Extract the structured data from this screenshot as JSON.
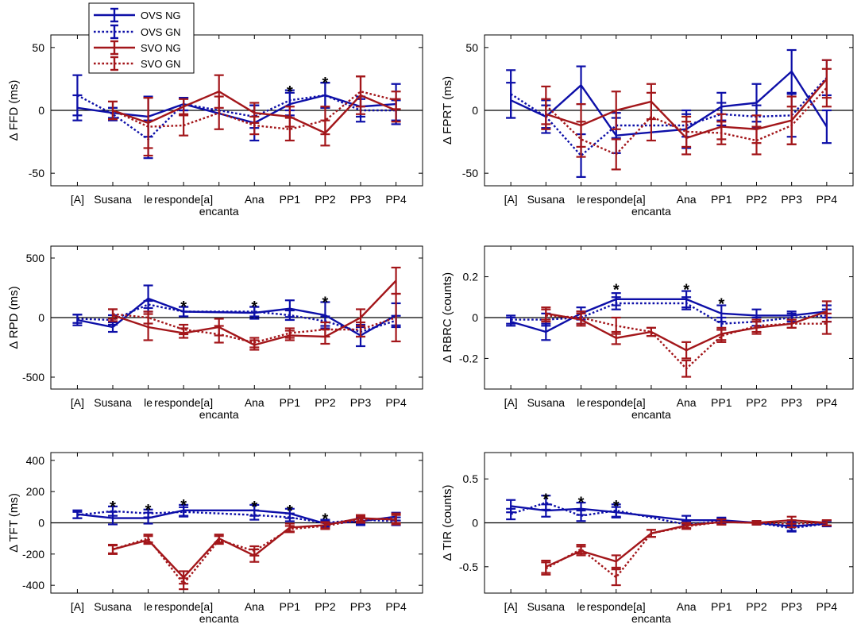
{
  "colors": {
    "ovs": "#0d0fa8",
    "svo": "#a3161a"
  },
  "legend": {
    "entries": [
      {
        "label": "OVS NG",
        "series": "OVS NG"
      },
      {
        "label": "OVS GN",
        "series": "OVS GN"
      },
      {
        "label": "SVO NG",
        "series": "SVO NG"
      },
      {
        "label": "SVO GN",
        "series": "SVO GN"
      }
    ]
  },
  "chart_data": [
    {
      "type": "line",
      "id": "ffd",
      "ylabel": "Δ FFD (ms)",
      "ylim": [
        -60,
        60
      ],
      "yticks": [
        -50,
        0,
        50
      ],
      "yticklabels": [
        "-50",
        "0",
        "50"
      ],
      "categories": [
        "[A]",
        "Susana",
        "le",
        "responde[a]",
        "encanta",
        "Ana",
        "PP1",
        "PP2",
        "PP3",
        "PP4"
      ],
      "category_labels": [
        "[A]",
        "Susana",
        "le",
        "responde[a]",
        "encanta",
        "Ana",
        "PP1",
        "PP2",
        "PP3",
        "PP4"
      ],
      "series": [
        {
          "name": "OVS NG",
          "values": [
            2,
            -2,
            -5,
            5,
            null,
            -10,
            5,
            12,
            3,
            5
          ],
          "errors": [
            10,
            4,
            16,
            5,
            null,
            14,
            9,
            10,
            8,
            16
          ]
        },
        {
          "name": "OVS GN",
          "values": [
            12,
            -3,
            -23,
            5,
            null,
            -5,
            8,
            12,
            0,
            0
          ],
          "errors": [
            16,
            5,
            15,
            5,
            null,
            9,
            8,
            10,
            9,
            8
          ]
        },
        {
          "name": "SVO NG",
          "values": [
            null,
            0,
            -10,
            3,
            15,
            -2,
            -5,
            -18,
            12,
            0
          ],
          "errors": [
            null,
            7,
            20,
            6,
            13,
            8,
            8,
            10,
            15,
            9
          ]
        },
        {
          "name": "SVO GN",
          "values": [
            null,
            0,
            -13,
            -12,
            -2,
            -12,
            -15,
            -8,
            15,
            8
          ],
          "errors": [
            null,
            7,
            23,
            8,
            13,
            7,
            9,
            11,
            12,
            7
          ]
        }
      ],
      "significance": [
        {
          "category": "PP1",
          "value": 17,
          "text": "*"
        },
        {
          "category": "PP2",
          "value": 24,
          "text": "*"
        }
      ]
    },
    {
      "type": "line",
      "id": "fprt",
      "ylabel": "Δ FPRT (ms)",
      "ylim": [
        -60,
        60
      ],
      "yticks": [
        -50,
        0,
        50
      ],
      "yticklabels": [
        "-50",
        "0",
        "50"
      ],
      "categories": [
        "[A]",
        "Susana",
        "le",
        "responde[a]",
        "encanta",
        "Ana",
        "PP1",
        "PP2",
        "PP3",
        "PP4"
      ],
      "category_labels": [
        "[A]",
        "Susana",
        "le",
        "responde[a]",
        "encanta",
        "Ana",
        "PP1",
        "PP2",
        "PP3",
        "PP4"
      ],
      "series": [
        {
          "name": "OVS NG",
          "values": [
            8,
            -5,
            20,
            -20,
            null,
            -15,
            3,
            6,
            31,
            -13
          ],
          "errors": [
            14,
            13,
            15,
            14,
            null,
            15,
            11,
            15,
            17,
            13
          ]
        },
        {
          "name": "OVS GN",
          "values": [
            13,
            -5,
            -36,
            -12,
            null,
            -12,
            -3,
            -5,
            -4,
            26
          ],
          "errors": [
            19,
            9,
            17,
            10,
            null,
            9,
            9,
            9,
            17,
            14
          ]
        },
        {
          "name": "SVO NG",
          "values": [
            null,
            -3,
            -12,
            0,
            7,
            -22,
            -13,
            -15,
            -8,
            25
          ],
          "errors": [
            null,
            12,
            17,
            15,
            14,
            13,
            10,
            11,
            19,
            15
          ]
        },
        {
          "name": "SVO GN",
          "values": [
            null,
            4,
            -23,
            -35,
            -5,
            -17,
            -18,
            -24,
            -12,
            18
          ],
          "errors": [
            null,
            15,
            14,
            12,
            19,
            12,
            9,
            11,
            15,
            15
          ]
        }
      ],
      "significance": []
    },
    {
      "type": "line",
      "id": "rpd",
      "ylabel": "Δ RPD (ms)",
      "ylim": [
        -600,
        600
      ],
      "yticks": [
        -500,
        0,
        500
      ],
      "yticklabels": [
        "-500",
        "0",
        "500"
      ],
      "categories": [
        "[A]",
        "Susana",
        "le",
        "responde[a]",
        "encanta",
        "Ana",
        "PP1",
        "PP2",
        "PP3",
        "PP4"
      ],
      "category_labels": [
        "[A]",
        "Susana",
        "le",
        "responde[a]",
        "encanta",
        "Ana",
        "PP1",
        "PP2",
        "PP3",
        "PP4"
      ],
      "series": [
        {
          "name": "OVS NG",
          "values": [
            -20,
            -80,
            160,
            50,
            null,
            40,
            75,
            20,
            -150,
            20
          ],
          "errors": [
            45,
            40,
            110,
            40,
            null,
            50,
            70,
            110,
            90,
            100
          ]
        },
        {
          "name": "OVS GN",
          "values": [
            -10,
            -20,
            110,
            50,
            null,
            50,
            20,
            -30,
            -120,
            -25
          ],
          "errors": [
            35,
            40,
            30,
            40,
            null,
            40,
            40,
            40,
            40,
            40
          ]
        },
        {
          "name": "SVO NG",
          "values": [
            null,
            20,
            -80,
            -130,
            -80,
            -230,
            -150,
            -160,
            0,
            310
          ],
          "errors": [
            null,
            50,
            110,
            40,
            70,
            40,
            40,
            60,
            70,
            110
          ]
        },
        {
          "name": "SVO GN",
          "values": [
            null,
            30,
            0,
            -100,
            -140,
            -210,
            -130,
            -100,
            -100,
            0
          ],
          "errors": [
            null,
            40,
            50,
            40,
            70,
            40,
            40,
            60,
            60,
            200
          ]
        }
      ],
      "significance": [
        {
          "category": "responde[a]",
          "value": 115,
          "text": "*"
        },
        {
          "category": "Ana",
          "value": 115,
          "text": "*"
        },
        {
          "category": "PP2",
          "value": 150,
          "text": "*"
        }
      ]
    },
    {
      "type": "line",
      "id": "rbrc",
      "ylabel": "Δ RBRC (counts)",
      "ylim": [
        -0.35,
        0.35
      ],
      "yticks": [
        -0.2,
        0,
        0.2
      ],
      "yticklabels": [
        "-0.2",
        "0",
        "0.2"
      ],
      "categories": [
        "[A]",
        "Susana",
        "le",
        "responde[a]",
        "encanta",
        "Ana",
        "PP1",
        "PP2",
        "PP3",
        "PP4"
      ],
      "category_labels": [
        "[A]",
        "Susana",
        "le",
        "responde[a]",
        "encanta",
        "Ana",
        "PP1",
        "PP2",
        "PP3",
        "PP4"
      ],
      "series": [
        {
          "name": "OVS NG",
          "values": [
            -0.02,
            -0.07,
            0.02,
            0.09,
            null,
            0.09,
            0.02,
            0.01,
            0.01,
            0.03
          ],
          "errors": [
            0.02,
            0.04,
            0.03,
            0.03,
            null,
            0.04,
            0.04,
            0.03,
            0.02,
            0.03
          ]
        },
        {
          "name": "OVS GN",
          "values": [
            -0.01,
            -0.01,
            0.0,
            0.07,
            null,
            0.07,
            -0.03,
            -0.02,
            0.0,
            0.01
          ],
          "errors": [
            0.02,
            0.03,
            0.03,
            0.03,
            null,
            0.03,
            0.03,
            0.02,
            0.02,
            0.03
          ]
        },
        {
          "name": "SVO NG",
          "values": [
            null,
            0.02,
            -0.01,
            -0.1,
            -0.07,
            -0.16,
            -0.08,
            -0.05,
            -0.03,
            0.03
          ],
          "errors": [
            null,
            0.03,
            0.03,
            0.03,
            0.02,
            0.04,
            0.03,
            0.03,
            0.02,
            0.05
          ]
        },
        {
          "name": "SVO GN",
          "values": [
            null,
            0.01,
            0.0,
            -0.04,
            -0.07,
            -0.25,
            -0.09,
            -0.04,
            -0.03,
            -0.03
          ],
          "errors": [
            null,
            0.03,
            0.03,
            0.04,
            0.02,
            0.04,
            0.03,
            0.03,
            0.02,
            0.05
          ]
        }
      ],
      "significance": [
        {
          "category": "responde[a]",
          "value": 0.15,
          "text": "*"
        },
        {
          "category": "Ana",
          "value": 0.15,
          "text": "*"
        },
        {
          "category": "PP1",
          "value": 0.08,
          "text": "*"
        }
      ]
    },
    {
      "type": "line",
      "id": "tft",
      "ylabel": "Δ TFT (ms)",
      "ylim": [
        -450,
        450
      ],
      "yticks": [
        -400,
        -200,
        0,
        200,
        400
      ],
      "yticklabels": [
        "-400",
        "-200",
        "0",
        "200",
        "400"
      ],
      "categories": [
        "[A]",
        "Susana",
        "le",
        "responde[a]",
        "encanta",
        "Ana",
        "PP1",
        "PP2",
        "PP3",
        "PP4"
      ],
      "category_labels": [
        "[A]",
        "Susana",
        "le",
        "responde[a]",
        "encanta",
        "Ana",
        "PP1",
        "PP2",
        "PP3",
        "PP4"
      ],
      "series": [
        {
          "name": "OVS NG",
          "values": [
            55,
            30,
            30,
            80,
            null,
            80,
            60,
            -5,
            10,
            40
          ],
          "errors": [
            25,
            40,
            35,
            35,
            null,
            35,
            30,
            20,
            25,
            25
          ]
        },
        {
          "name": "OVS GN",
          "values": [
            50,
            75,
            60,
            70,
            null,
            50,
            35,
            0,
            20,
            10
          ],
          "errors": [
            20,
            30,
            25,
            30,
            null,
            30,
            25,
            20,
            25,
            25
          ]
        },
        {
          "name": "SVO NG",
          "values": [
            null,
            -170,
            -110,
            -350,
            -100,
            -210,
            -30,
            -15,
            30,
            20
          ],
          "errors": [
            null,
            30,
            25,
            40,
            25,
            40,
            25,
            20,
            20,
            30
          ]
        },
        {
          "name": "SVO GN",
          "values": [
            null,
            -170,
            -100,
            -390,
            -110,
            -180,
            -40,
            -20,
            20,
            30
          ],
          "errors": [
            null,
            25,
            25,
            35,
            25,
            30,
            20,
            20,
            20,
            30
          ]
        }
      ],
      "significance": [
        {
          "category": "Susana",
          "value": 120,
          "text": "*"
        },
        {
          "category": "le",
          "value": 100,
          "text": "*"
        },
        {
          "category": "responde[a]",
          "value": 130,
          "text": "*"
        },
        {
          "category": "Ana",
          "value": 120,
          "text": "*"
        },
        {
          "category": "PP1",
          "value": 95,
          "text": "*"
        },
        {
          "category": "PP2",
          "value": 40,
          "text": "*"
        }
      ]
    },
    {
      "type": "line",
      "id": "tir",
      "ylabel": "Δ TIR (counts)",
      "ylim": [
        -0.8,
        0.8
      ],
      "yticks": [
        -0.5,
        0,
        0.5
      ],
      "yticklabels": [
        "-0.5",
        "0",
        "0.5"
      ],
      "categories": [
        "[A]",
        "Susana",
        "le",
        "responde[a]",
        "encanta",
        "Ana",
        "PP1",
        "PP2",
        "PP3",
        "PP4"
      ],
      "category_labels": [
        "[A]",
        "Susana",
        "le",
        "responde[a]",
        "encanta",
        "Ana",
        "PP1",
        "PP2",
        "PP3",
        "PP4"
      ],
      "series": [
        {
          "name": "OVS NG",
          "values": [
            0.19,
            0.14,
            0.16,
            0.12,
            null,
            0.03,
            0.03,
            0.0,
            -0.04,
            -0.01
          ],
          "errors": [
            0.07,
            0.07,
            0.07,
            0.06,
            null,
            0.05,
            0.03,
            0.02,
            0.05,
            0.03
          ]
        },
        {
          "name": "OVS GN",
          "values": [
            0.1,
            0.23,
            0.08,
            0.14,
            null,
            -0.02,
            0.02,
            0.0,
            -0.06,
            -0.01
          ],
          "errors": [
            0.06,
            0.08,
            0.06,
            0.07,
            null,
            0.04,
            0.03,
            0.02,
            0.04,
            0.03
          ]
        },
        {
          "name": "SVO NG",
          "values": [
            null,
            -0.5,
            -0.32,
            -0.44,
            -0.12,
            -0.03,
            0.01,
            0.0,
            0.03,
            0.0
          ],
          "errors": [
            null,
            0.07,
            0.05,
            0.07,
            0.04,
            0.03,
            0.03,
            0.02,
            0.04,
            0.03
          ]
        },
        {
          "name": "SVO GN",
          "values": [
            null,
            -0.52,
            -0.3,
            -0.62,
            -0.12,
            -0.04,
            0.01,
            0.0,
            -0.01,
            0.0
          ],
          "errors": [
            null,
            0.07,
            0.05,
            0.09,
            0.04,
            0.03,
            0.03,
            0.02,
            0.04,
            0.03
          ]
        }
      ],
      "significance": [
        {
          "category": "Susana",
          "value": 0.3,
          "text": "*"
        },
        {
          "category": "le",
          "value": 0.26,
          "text": "*"
        },
        {
          "category": "responde[a]",
          "value": 0.22,
          "text": "*"
        }
      ]
    }
  ]
}
